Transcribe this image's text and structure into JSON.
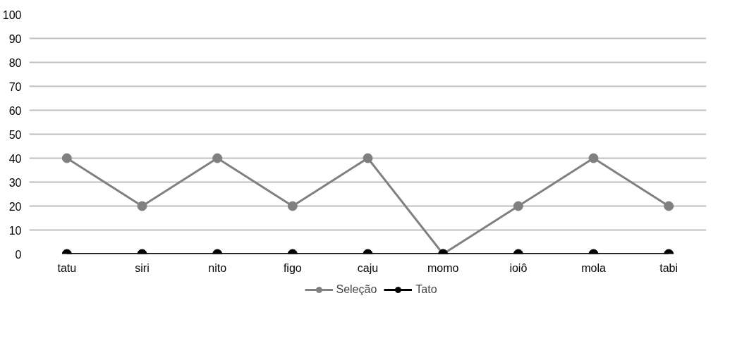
{
  "chart_data": {
    "type": "line",
    "categories": [
      "tatu",
      "siri",
      "nito",
      "figo",
      "caju",
      "momo",
      "ioiô",
      "mola",
      "tabi"
    ],
    "series": [
      {
        "name": "Seleção",
        "color": "#808080",
        "values": [
          40,
          20,
          40,
          20,
          40,
          0,
          20,
          40,
          20
        ]
      },
      {
        "name": "Tato",
        "color": "#000000",
        "values": [
          0,
          0,
          0,
          0,
          0,
          0,
          0,
          0,
          0
        ]
      }
    ],
    "ylim": [
      0,
      100
    ],
    "yticks": [
      0,
      10,
      20,
      30,
      40,
      50,
      60,
      70,
      80,
      90,
      100
    ],
    "grid": "y",
    "legend": "bottom",
    "marker": "circle",
    "line_style": "solid"
  }
}
